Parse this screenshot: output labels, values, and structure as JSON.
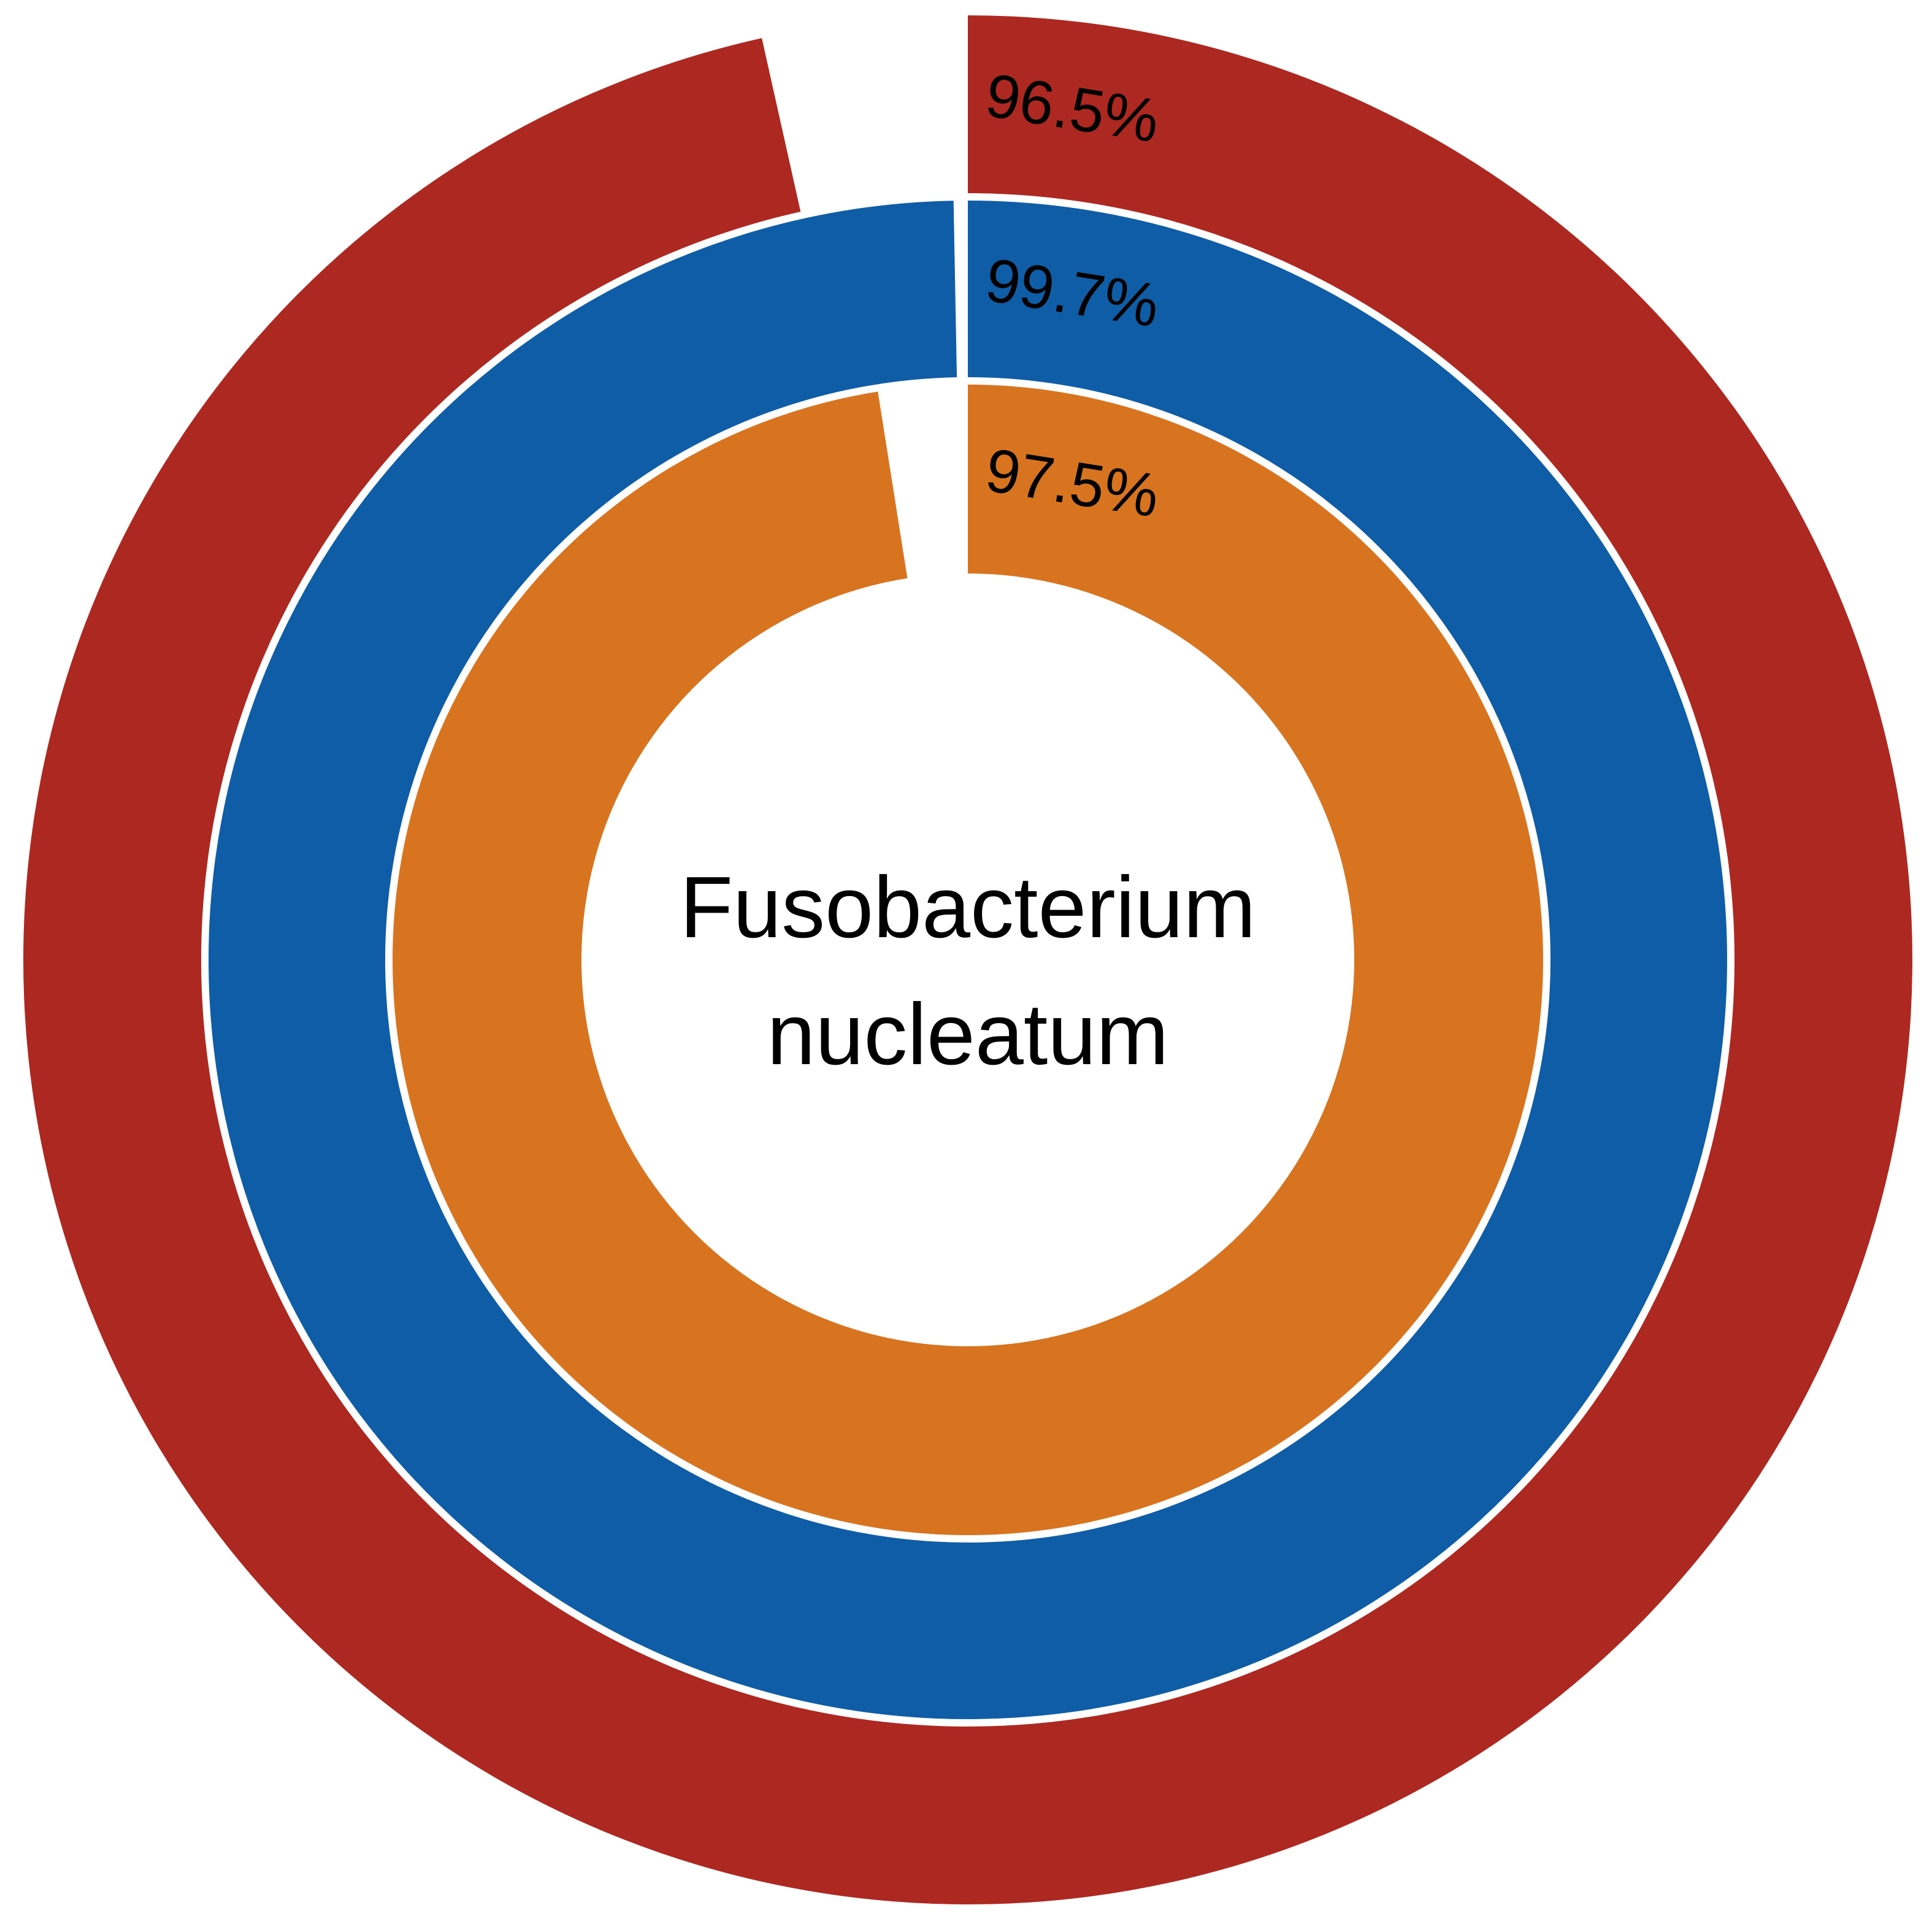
{
  "chart_data": {
    "type": "pie",
    "subtype": "concentric-donut",
    "center_label_lines": [
      "Fusobacterium",
      "nucleatum"
    ],
    "rings": [
      {
        "value": 96.5,
        "label": "96.5%",
        "color": "#AC2820"
      },
      {
        "value": 99.7,
        "label": "99.7%",
        "color": "#0E5DA6"
      },
      {
        "value": 97.5,
        "label": "97.5%",
        "color": "#D8731F"
      }
    ],
    "max_value": 100,
    "start_angle": "top",
    "direction": "clockwise"
  }
}
